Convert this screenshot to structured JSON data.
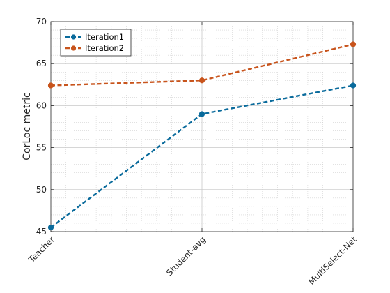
{
  "chart_data": {
    "type": "line",
    "title": "",
    "xlabel": "",
    "ylabel": "CorLoc metric",
    "categories": [
      "Teacher",
      "Student-avg",
      "MultiSelect-Net"
    ],
    "series": [
      {
        "name": "Iteration1",
        "color": "#0a6b9c",
        "values": [
          45.5,
          59.0,
          62.4
        ]
      },
      {
        "name": "Iteration2",
        "color": "#c8541c",
        "values": [
          62.4,
          63.0,
          67.3
        ]
      }
    ],
    "ylim": [
      45,
      70
    ],
    "yticks": [
      45,
      50,
      55,
      60,
      65,
      70
    ],
    "grid": true,
    "minor_grid": true,
    "line_style": "dashed",
    "marker": "circle",
    "legend_position": "top-left"
  }
}
